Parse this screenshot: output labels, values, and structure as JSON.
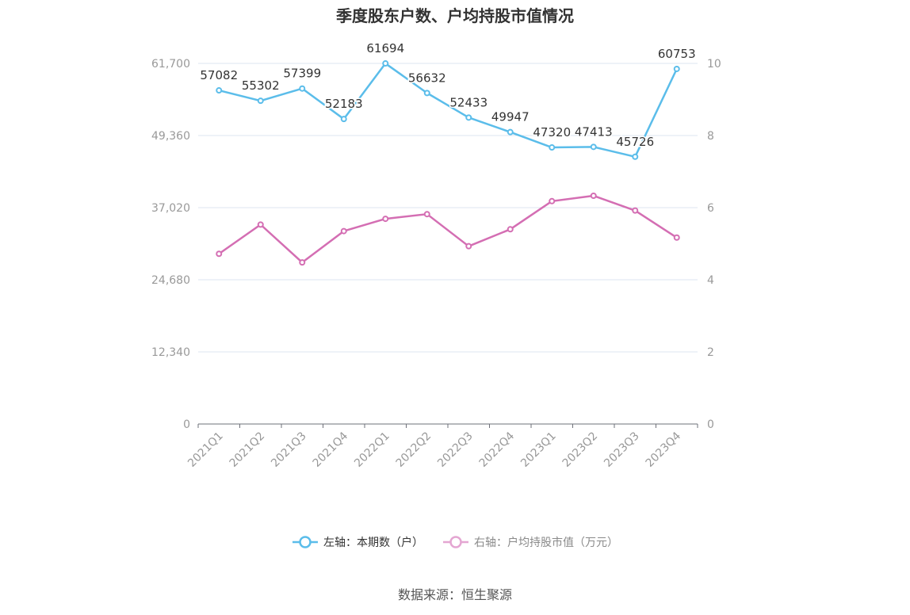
{
  "title": "季度股东户数、户均持股市值情况",
  "source": "数据来源：恒生聚源",
  "colors": {
    "left": "#5bbdea",
    "right": "#d46eb3",
    "grid": "#dde6f0",
    "axis": "#999999"
  },
  "legend": {
    "left": "左轴：本期数（户）",
    "right": "右轴：户均持股市值（万元）"
  },
  "chart_data": {
    "type": "line",
    "title": "季度股东户数、户均持股市值情况",
    "categories": [
      "2021Q1",
      "2021Q2",
      "2021Q3",
      "2021Q4",
      "2022Q1",
      "2022Q2",
      "2022Q3",
      "2022Q4",
      "2023Q1",
      "2023Q2",
      "2023Q3",
      "2023Q4"
    ],
    "y_left": {
      "ticks": [
        0,
        12340,
        24680,
        37020,
        49360,
        61700
      ],
      "tick_labels": [
        "0",
        "12,340",
        "24,680",
        "37,020",
        "49,360",
        "61,700"
      ],
      "range": [
        0,
        61700
      ]
    },
    "y_right": {
      "ticks": [
        0,
        2,
        4,
        6,
        8,
        10
      ],
      "tick_labels": [
        "0",
        "2",
        "4",
        "6",
        "8",
        "10"
      ],
      "range": [
        0,
        10
      ]
    },
    "grid": true,
    "legend_position": "bottom",
    "series": [
      {
        "name": "左轴：本期数（户）",
        "axis": "left",
        "show_labels": true,
        "values": [
          57082,
          55302,
          57399,
          52183,
          61694,
          56632,
          52433,
          49947,
          47320,
          47413,
          45726,
          60753
        ]
      },
      {
        "name": "右轴：户均持股市值（万元）",
        "axis": "right",
        "show_labels": false,
        "values": [
          4.72,
          5.53,
          4.48,
          5.35,
          5.69,
          5.82,
          4.93,
          5.4,
          6.18,
          6.33,
          5.92,
          5.17
        ]
      }
    ]
  }
}
